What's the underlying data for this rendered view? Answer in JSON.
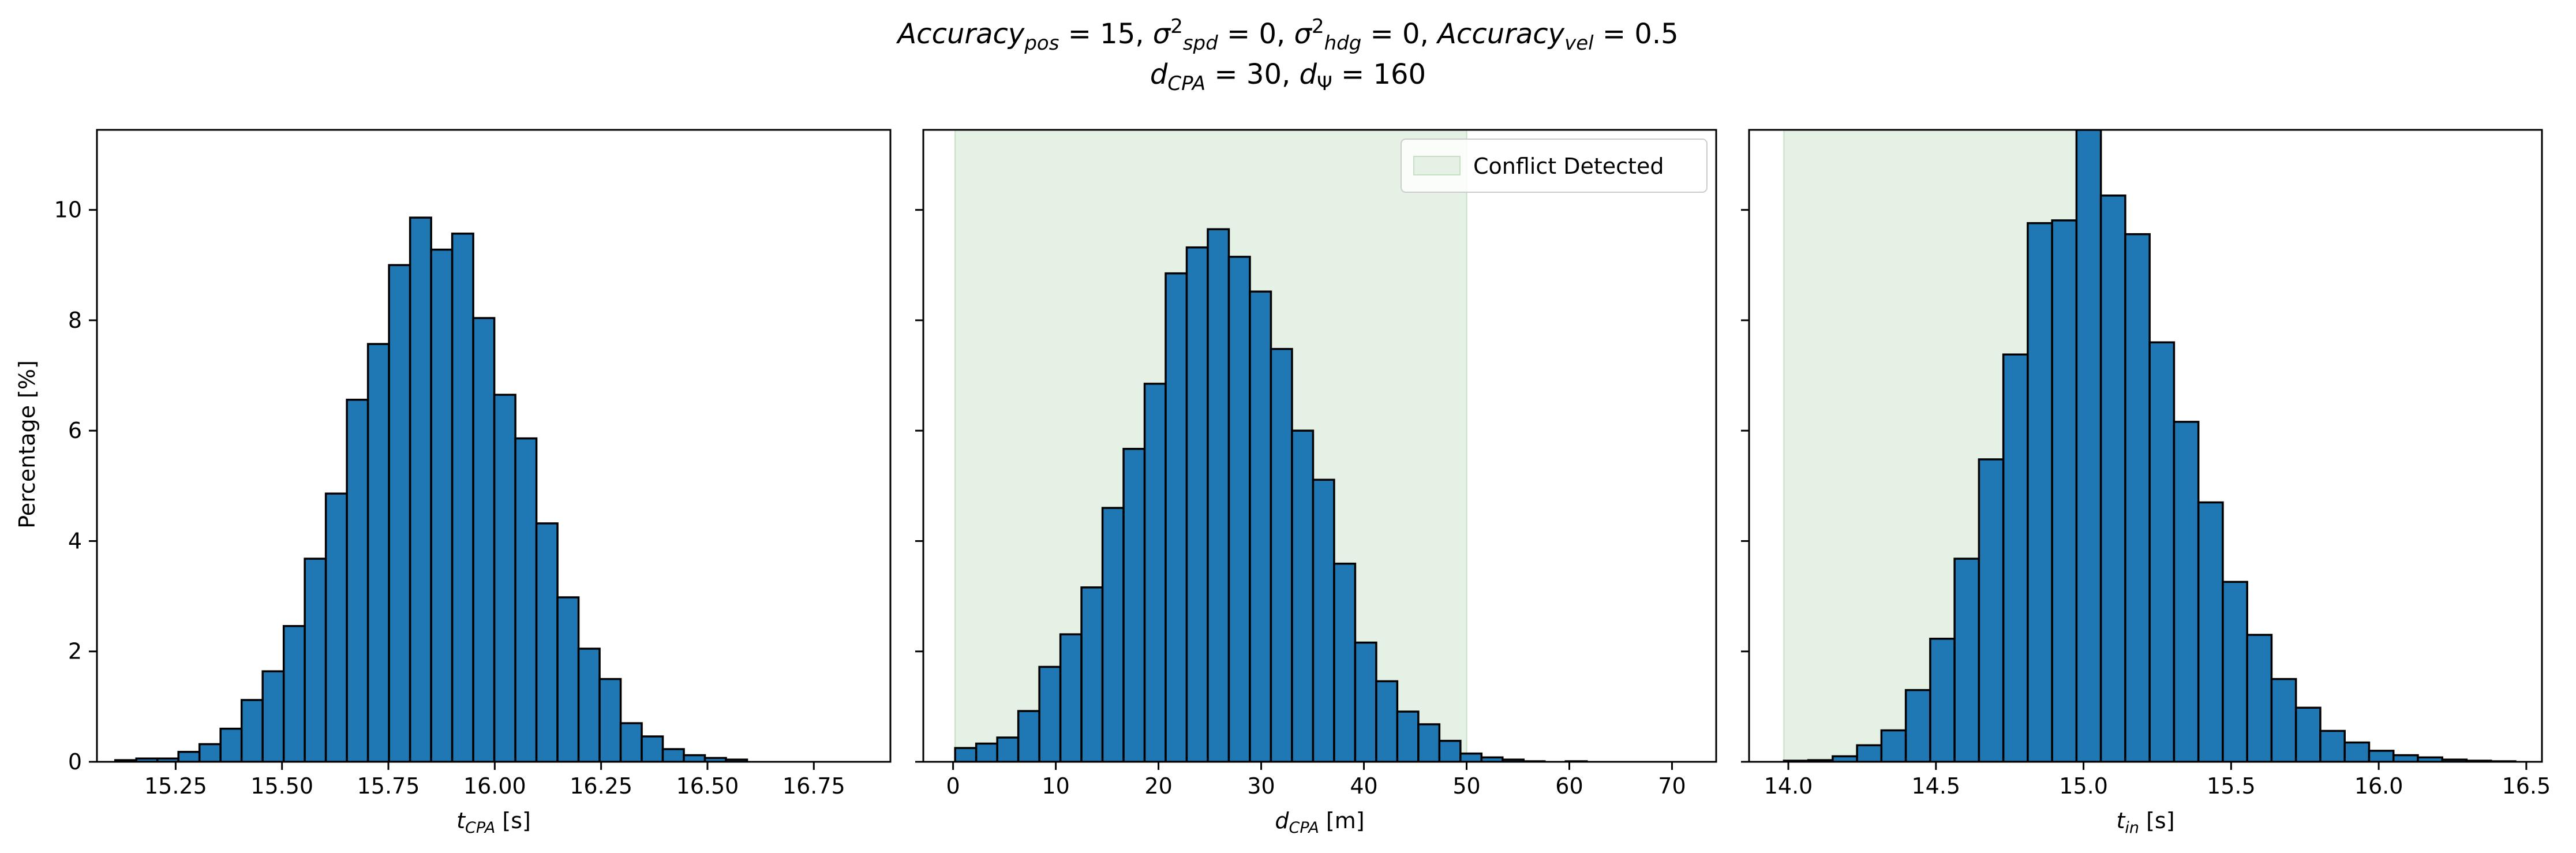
{
  "figure": {
    "title_line1_parts": [
      {
        "text": "Accuracy",
        "style": "italic"
      },
      {
        "text": "pos",
        "style": "italic-sub"
      },
      {
        "text": " = 15, ",
        "style": "normal"
      },
      {
        "text": "σ",
        "style": "italic"
      },
      {
        "text": "2",
        "style": "sup"
      },
      {
        "text": "spd",
        "style": "italic-sub"
      },
      {
        "text": " = 0, ",
        "style": "normal"
      },
      {
        "text": "σ",
        "style": "italic"
      },
      {
        "text": "2",
        "style": "sup"
      },
      {
        "text": "hdg",
        "style": "italic-sub"
      },
      {
        "text": " = 0, ",
        "style": "normal"
      },
      {
        "text": "Accuracy",
        "style": "italic"
      },
      {
        "text": "vel",
        "style": "italic-sub"
      },
      {
        "text": " = 0.5",
        "style": "normal"
      }
    ],
    "title_line2_parts": [
      {
        "text": "d",
        "style": "italic"
      },
      {
        "text": "CPA",
        "style": "italic-sub"
      },
      {
        "text": " = 30, ",
        "style": "normal"
      },
      {
        "text": "d",
        "style": "italic"
      },
      {
        "text": "Ψ",
        "style": "sub"
      },
      {
        "text": " = 160",
        "style": "normal"
      }
    ],
    "ylabel": "Percentage [%]",
    "y_ticks": [
      0,
      2,
      4,
      6,
      8,
      10
    ],
    "colors": {
      "bar_fill": "#1f77b4",
      "bar_edge": "#000000",
      "conflict_fill": "#e5f1e4",
      "conflict_edge": "#c7e0c5"
    }
  },
  "chart_data": [
    {
      "type": "bar",
      "subtype": "histogram",
      "xlabel_parts": [
        {
          "text": "t",
          "style": "italic"
        },
        {
          "text": "CPA",
          "style": "italic-sub"
        },
        {
          "text": " [s]",
          "style": "normal"
        }
      ],
      "xlim": [
        15.065,
        16.93
      ],
      "ylim": [
        0,
        11.45
      ],
      "x_ticks": [
        15.25,
        15.5,
        15.75,
        16.0,
        16.25,
        16.5,
        16.75
      ],
      "x_tick_labels": [
        "15.25",
        "15.50",
        "15.75",
        "16.00",
        "16.25",
        "16.50",
        "16.75"
      ],
      "bin_start": 15.108,
      "bin_width": 0.0495,
      "values": [
        0.03,
        0.06,
        0.06,
        0.18,
        0.32,
        0.6,
        1.12,
        1.64,
        2.46,
        3.68,
        4.86,
        6.56,
        7.57,
        9.0,
        9.86,
        9.28,
        9.57,
        8.04,
        6.65,
        5.86,
        4.32,
        2.98,
        2.05,
        1.5,
        0.7,
        0.46,
        0.23,
        0.12,
        0.07,
        0.04
      ],
      "shaded_region": null,
      "legend": null
    },
    {
      "type": "bar",
      "subtype": "histogram",
      "xlabel_parts": [
        {
          "text": "d",
          "style": "italic"
        },
        {
          "text": "CPA",
          "style": "italic-sub"
        },
        {
          "text": " [m]",
          "style": "normal"
        }
      ],
      "xlim": [
        -2.9,
        74.3
      ],
      "ylim": [
        0,
        11.45
      ],
      "x_ticks": [
        0,
        10,
        20,
        30,
        40,
        50,
        60,
        70
      ],
      "x_tick_labels": [
        "0",
        "10",
        "20",
        "30",
        "40",
        "50",
        "60",
        "70"
      ],
      "bin_start": 0.2,
      "bin_width": 2.05,
      "values": [
        0.25,
        0.33,
        0.44,
        0.92,
        1.72,
        2.31,
        3.16,
        4.6,
        5.67,
        6.85,
        8.85,
        9.32,
        9.65,
        9.15,
        8.52,
        7.48,
        6.0,
        5.11,
        3.59,
        2.16,
        1.46,
        0.91,
        0.68,
        0.38,
        0.15,
        0.08,
        0.04,
        0.01,
        0.0,
        0.01
      ],
      "shaded_region": [
        0.2,
        50
      ],
      "legend": {
        "label": "Conflict Detected",
        "position": "upper right"
      }
    },
    {
      "type": "bar",
      "subtype": "histogram",
      "xlabel_parts": [
        {
          "text": "t",
          "style": "italic"
        },
        {
          "text": "in",
          "style": "italic-sub"
        },
        {
          "text": " [s]",
          "style": "normal"
        }
      ],
      "xlim": [
        13.867,
        16.553
      ],
      "ylim": [
        0,
        11.45
      ],
      "x_ticks": [
        14.0,
        14.5,
        15.0,
        15.5,
        16.0,
        16.5
      ],
      "x_tick_labels": [
        "14.0",
        "14.5",
        "15.0",
        "15.5",
        "16.0",
        "16.5"
      ],
      "bin_start": 13.985,
      "bin_width": 0.0826,
      "values": [
        0.02,
        0.03,
        0.1,
        0.3,
        0.57,
        1.3,
        2.23,
        3.68,
        5.48,
        7.38,
        9.76,
        9.81,
        11.45,
        10.26,
        9.56,
        7.6,
        6.16,
        4.7,
        3.26,
        2.3,
        1.5,
        0.98,
        0.56,
        0.35,
        0.2,
        0.12,
        0.08,
        0.04,
        0.02,
        0.01
      ],
      "shaded_region": [
        13.985,
        15.0
      ],
      "legend": null
    }
  ]
}
